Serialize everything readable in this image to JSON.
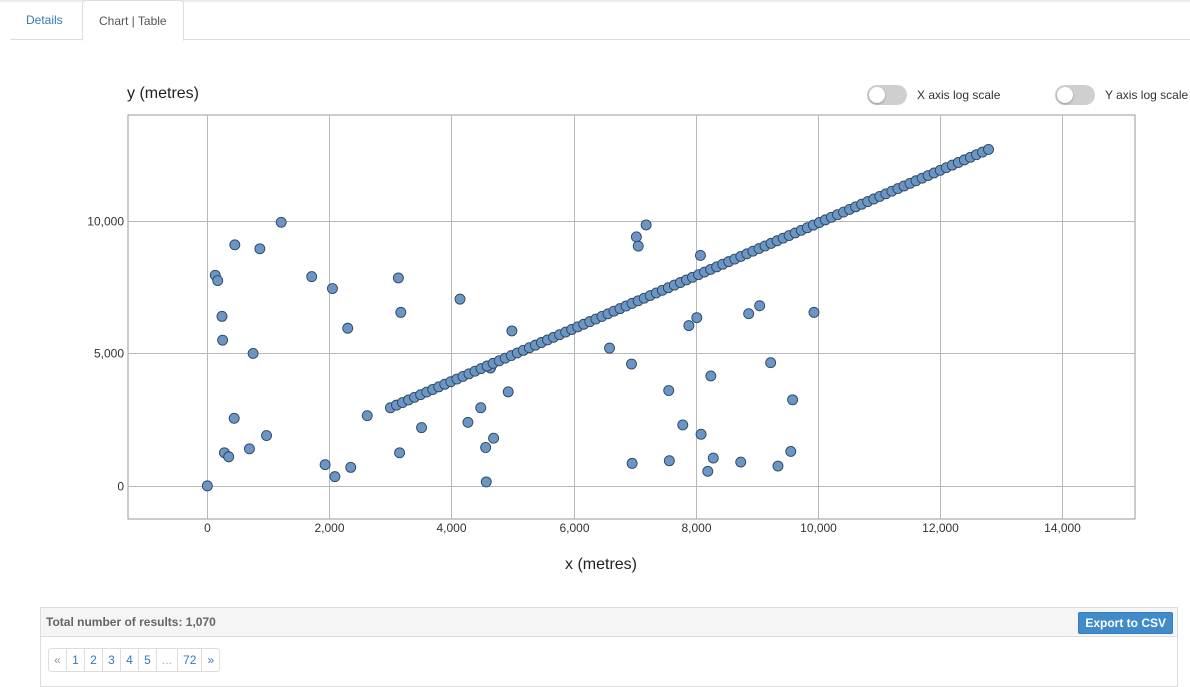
{
  "tabs": [
    {
      "label": "Details",
      "active": false
    },
    {
      "label": "Chart | Table",
      "active": true
    }
  ],
  "toggles": {
    "x_log": {
      "label": "X axis log scale",
      "on": false
    },
    "y_log": {
      "label": "Y axis log scale",
      "on": false
    }
  },
  "footer": {
    "results_label": "Total number of results: 1,070",
    "export_label": "Export to CSV",
    "pages": [
      "«",
      "1",
      "2",
      "3",
      "4",
      "5",
      "...",
      "72",
      "»"
    ]
  },
  "colors": {
    "point_fill": "#6b96c3",
    "point_stroke": "#2d4560",
    "grid": "#b8b8b8"
  },
  "chart_data": {
    "type": "scatter",
    "xlabel": "x (metres)",
    "ylabel": "y (metres)",
    "xlim": [
      -1300,
      15200
    ],
    "ylim": [
      -1250,
      14000
    ],
    "xticks": [
      0,
      2000,
      4000,
      6000,
      8000,
      10000,
      12000,
      14000
    ],
    "yticks": [
      0,
      5000,
      10000
    ],
    "xtick_labels": [
      "0",
      "2,000",
      "4,000",
      "6,000",
      "8,000",
      "10,000",
      "12,000",
      "14,000"
    ],
    "ytick_labels": [
      "0",
      "5,000",
      "10,000"
    ],
    "grid": true,
    "line_points": {
      "x_start": 3000,
      "x_end": 12800,
      "count": 100,
      "y_start": 2950,
      "y_end": 12700
    },
    "points": [
      [
        0,
        0
      ],
      [
        130,
        7950
      ],
      [
        170,
        7750
      ],
      [
        240,
        6400
      ],
      [
        250,
        5500
      ],
      [
        280,
        1250
      ],
      [
        350,
        1100
      ],
      [
        440,
        2550
      ],
      [
        450,
        9100
      ],
      [
        690,
        1400
      ],
      [
        750,
        5000
      ],
      [
        860,
        8950
      ],
      [
        970,
        1900
      ],
      [
        1210,
        9950
      ],
      [
        1710,
        7900
      ],
      [
        1930,
        800
      ],
      [
        2050,
        7450
      ],
      [
        2090,
        350
      ],
      [
        2300,
        5950
      ],
      [
        2350,
        700
      ],
      [
        2620,
        2650
      ],
      [
        3130,
        7850
      ],
      [
        3150,
        1250
      ],
      [
        3170,
        6550
      ],
      [
        3510,
        2200
      ],
      [
        4140,
        7050
      ],
      [
        4270,
        2400
      ],
      [
        4480,
        2950
      ],
      [
        4560,
        1450
      ],
      [
        4570,
        150
      ],
      [
        4640,
        4450
      ],
      [
        4690,
        1800
      ],
      [
        4930,
        3550
      ],
      [
        4990,
        5850
      ],
      [
        6590,
        5200
      ],
      [
        6950,
        4600
      ],
      [
        6960,
        850
      ],
      [
        7030,
        9400
      ],
      [
        7060,
        9050
      ],
      [
        7190,
        9850
      ],
      [
        7560,
        3600
      ],
      [
        7570,
        950
      ],
      [
        7790,
        2300
      ],
      [
        7890,
        6050
      ],
      [
        8020,
        6350
      ],
      [
        8080,
        8700
      ],
      [
        8090,
        1950
      ],
      [
        8200,
        550
      ],
      [
        8250,
        4150
      ],
      [
        8290,
        1050
      ],
      [
        8740,
        900
      ],
      [
        8870,
        6500
      ],
      [
        9050,
        6800
      ],
      [
        9230,
        4650
      ],
      [
        9350,
        750
      ],
      [
        9560,
        1300
      ],
      [
        9590,
        3250
      ],
      [
        9940,
        6550
      ]
    ]
  }
}
